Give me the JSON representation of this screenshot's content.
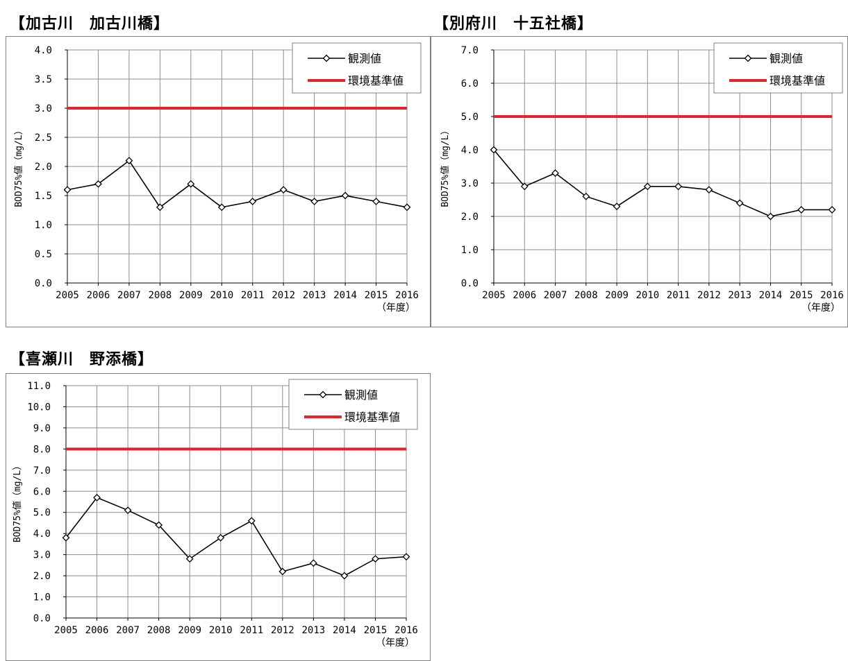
{
  "chart_data": [
    {
      "type": "line",
      "title": "【加古川　加古川橋】",
      "ylabel": "BOD75%値（mg/L）",
      "xunit": "（年度）",
      "x": [
        "2005",
        "2006",
        "2007",
        "2008",
        "2009",
        "2010",
        "2011",
        "2012",
        "2013",
        "2014",
        "2015",
        "2016"
      ],
      "ylim": [
        0,
        4
      ],
      "ytick_labels": [
        "0.0",
        "0.5",
        "1.0",
        "1.5",
        "2.0",
        "2.5",
        "3.0",
        "3.5",
        "4.0"
      ],
      "series": [
        {
          "name": "観測値",
          "values": [
            1.6,
            1.7,
            2.1,
            1.3,
            1.7,
            1.3,
            1.4,
            1.6,
            1.4,
            1.5,
            1.4,
            1.3
          ],
          "color": "#000000",
          "marker": "diamond"
        }
      ],
      "reference": {
        "name": "環境基準値",
        "value": 3.0,
        "color": "#e8222a"
      },
      "grid": true,
      "legend": "top-right"
    },
    {
      "type": "line",
      "title": "【別府川　十五社橋】",
      "ylabel": "BOD75%値（mg/L）",
      "xunit": "（年度）",
      "x": [
        "2005",
        "2006",
        "2007",
        "2008",
        "2009",
        "2010",
        "2011",
        "2012",
        "2013",
        "2014",
        "2015",
        "2016"
      ],
      "ylim": [
        0,
        7
      ],
      "ytick_labels": [
        "0.0",
        "1.0",
        "2.0",
        "3.0",
        "4.0",
        "5.0",
        "6.0",
        "7.0"
      ],
      "series": [
        {
          "name": "観測値",
          "values": [
            4.0,
            2.9,
            3.3,
            2.6,
            2.3,
            2.9,
            2.9,
            2.8,
            2.4,
            2.0,
            2.2,
            2.2
          ],
          "color": "#000000",
          "marker": "diamond"
        }
      ],
      "reference": {
        "name": "環境基準値",
        "value": 5.0,
        "color": "#e8222a"
      },
      "grid": true,
      "legend": "top-right"
    },
    {
      "type": "line",
      "title": "【喜瀬川　野添橋】",
      "ylabel": "BOD75%値（mg/L）",
      "xunit": "（年度）",
      "x": [
        "2005",
        "2006",
        "2007",
        "2008",
        "2009",
        "2010",
        "2011",
        "2012",
        "2013",
        "2014",
        "2015",
        "2016"
      ],
      "ylim": [
        0,
        11
      ],
      "ytick_labels": [
        "0.0",
        "1.0",
        "2.0",
        "3.0",
        "4.0",
        "5.0",
        "6.0",
        "7.0",
        "8.0",
        "9.0",
        "10.0",
        "11.0"
      ],
      "series": [
        {
          "name": "観測値",
          "values": [
            3.8,
            5.7,
            5.1,
            4.4,
            2.8,
            3.8,
            4.6,
            2.2,
            2.6,
            2.0,
            2.8,
            2.9
          ],
          "color": "#000000",
          "marker": "diamond"
        }
      ],
      "reference": {
        "name": "環境基準値",
        "value": 8.0,
        "color": "#e8222a"
      },
      "grid": true,
      "legend": "top-right"
    }
  ]
}
